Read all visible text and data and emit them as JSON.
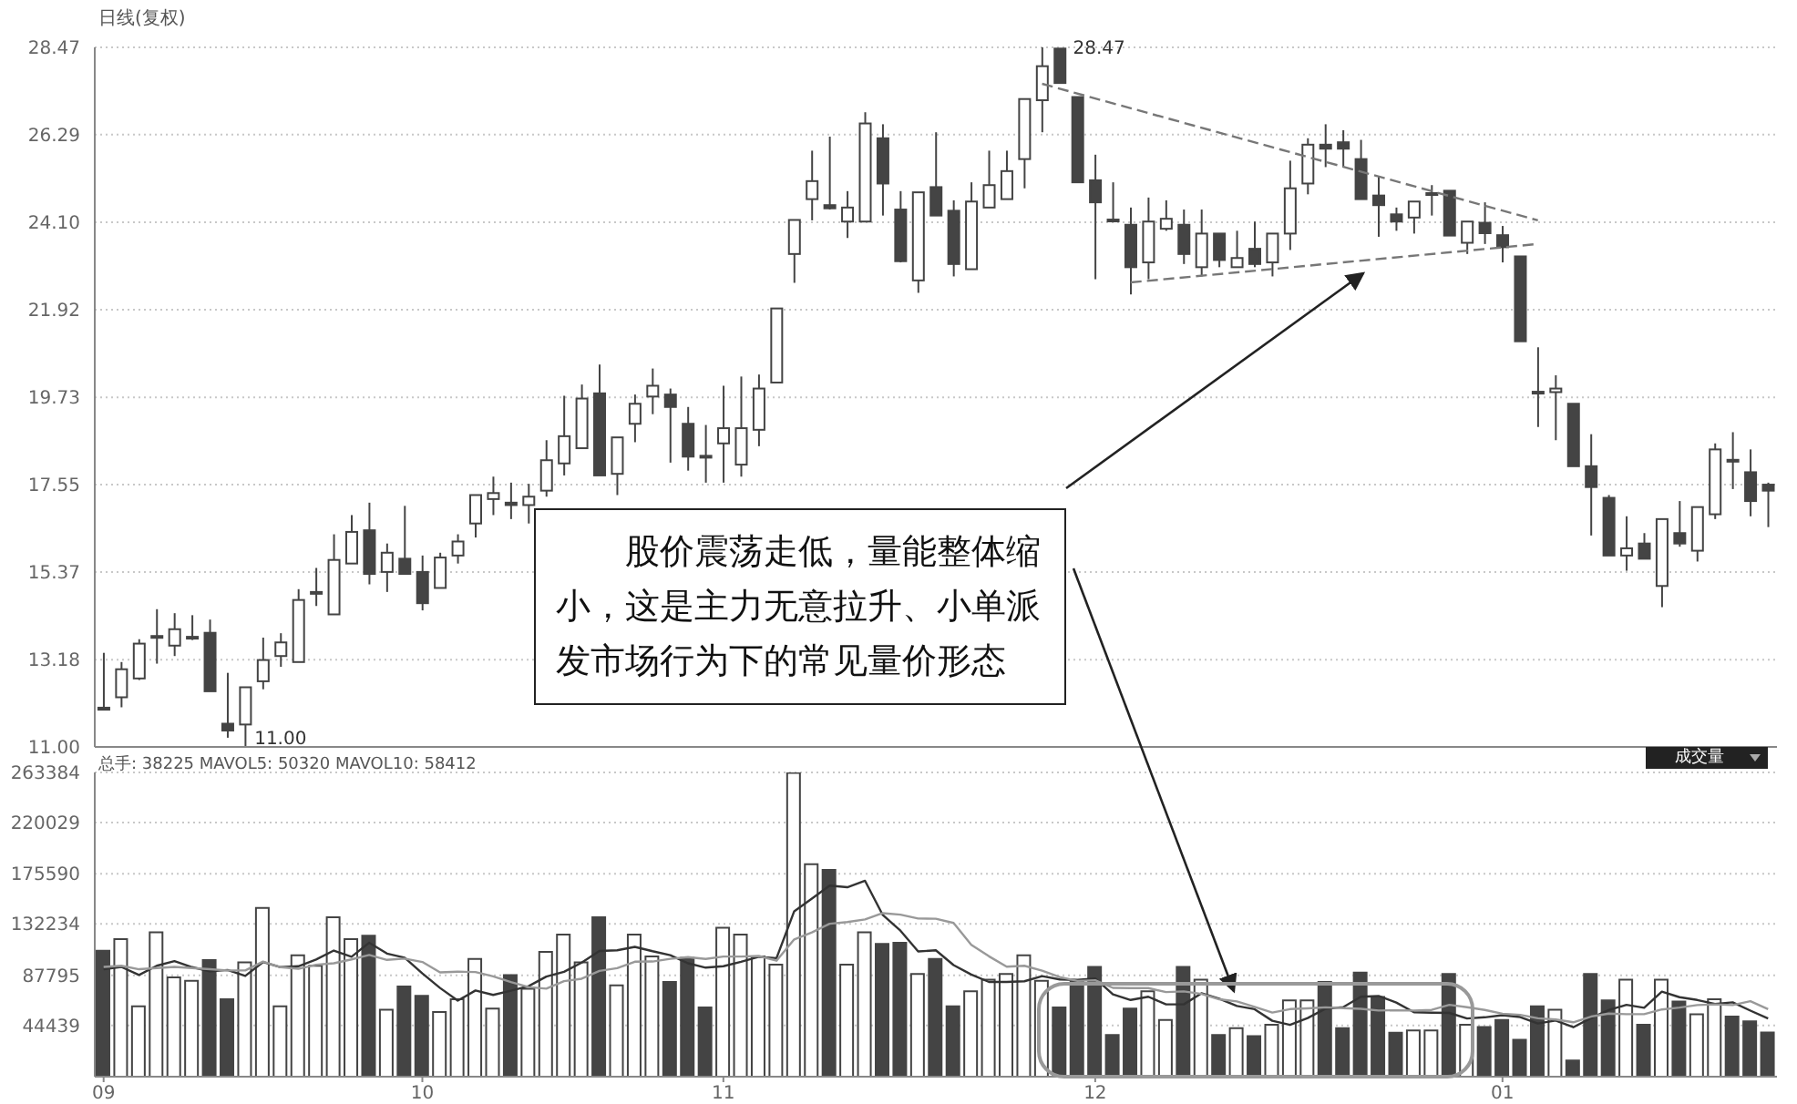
{
  "chart_data": [
    {
      "type": "candlestick",
      "annotations": [
        "日线(复权)",
        "11.00",
        "28.47",
        "股价震荡走低，量能整体缩小，这是主力无意拉升、小单派发市场行为下的常见量价形态"
      ],
      "categories": [
        "09",
        null,
        null,
        null,
        null,
        null,
        null,
        null,
        null,
        null,
        null,
        null,
        null,
        null,
        null,
        null,
        null,
        null,
        "10",
        null,
        null,
        null,
        null,
        null,
        null,
        null,
        null,
        null,
        null,
        null,
        null,
        null,
        null,
        null,
        null,
        "11",
        null,
        null,
        null,
        null,
        null,
        null,
        null,
        null,
        null,
        null,
        null,
        null,
        null,
        null,
        null,
        null,
        null,
        null,
        null,
        null,
        "12",
        null,
        null,
        null,
        null,
        null,
        null,
        null,
        null,
        null,
        null,
        null,
        null,
        null,
        null,
        null,
        null,
        null,
        null,
        null,
        null,
        null,
        null,
        "01",
        null,
        null,
        null,
        null,
        null,
        null,
        null,
        null,
        null,
        null,
        null,
        null,
        null,
        null,
        null
      ],
      "ohlc": [
        [
          11.98,
          13.35,
          11.93,
          11.93
        ],
        [
          12.24,
          13.12,
          11.99,
          12.94
        ],
        [
          12.71,
          13.69,
          12.67,
          13.58
        ],
        [
          13.74,
          14.44,
          13.08,
          13.77
        ],
        [
          13.53,
          14.34,
          13.27,
          13.94
        ],
        [
          13.71,
          14.29,
          13.67,
          13.75
        ],
        [
          13.85,
          14.18,
          12.39,
          12.39
        ],
        [
          11.58,
          12.85,
          11.23,
          11.41
        ],
        [
          11.56,
          12.49,
          11.0,
          12.49
        ],
        [
          12.64,
          13.73,
          12.44,
          13.17
        ],
        [
          13.27,
          13.84,
          13.0,
          13.61
        ],
        [
          13.12,
          14.94,
          13.12,
          14.67
        ],
        [
          14.83,
          15.47,
          14.52,
          14.87
        ],
        [
          14.31,
          16.31,
          14.31,
          15.67
        ],
        [
          15.58,
          16.79,
          15.58,
          16.37
        ],
        [
          16.41,
          17.1,
          15.06,
          15.32
        ],
        [
          15.37,
          16.08,
          14.87,
          15.85
        ],
        [
          15.7,
          17.02,
          15.3,
          15.32
        ],
        [
          15.37,
          15.78,
          14.41,
          14.59
        ],
        [
          14.97,
          15.85,
          14.97,
          15.73
        ],
        [
          15.78,
          16.31,
          15.58,
          16.13
        ],
        [
          16.58,
          17.29,
          16.23,
          17.29
        ],
        [
          17.19,
          17.75,
          16.79,
          17.34
        ],
        [
          17.1,
          17.6,
          16.69,
          17.04
        ],
        [
          17.04,
          17.57,
          16.58,
          17.25
        ],
        [
          17.4,
          18.66,
          17.25,
          18.16
        ],
        [
          18.08,
          19.77,
          17.78,
          18.76
        ],
        [
          18.46,
          20.05,
          18.46,
          19.7
        ],
        [
          19.83,
          20.55,
          17.78,
          17.78
        ],
        [
          17.82,
          18.73,
          17.29,
          18.73
        ],
        [
          19.07,
          19.8,
          18.61,
          19.57
        ],
        [
          19.75,
          20.45,
          19.31,
          20.02
        ],
        [
          19.8,
          19.95,
          18.1,
          19.49
        ],
        [
          19.07,
          19.49,
          17.9,
          18.25
        ],
        [
          18.27,
          19.04,
          17.6,
          18.23
        ],
        [
          18.58,
          20.02,
          17.6,
          18.96
        ],
        [
          18.05,
          20.25,
          17.75,
          18.96
        ],
        [
          18.92,
          20.3,
          18.51,
          19.95
        ],
        [
          20.1,
          21.95,
          20.1,
          21.95
        ],
        [
          23.31,
          24.16,
          22.59,
          24.16
        ],
        [
          24.68,
          25.89,
          24.15,
          25.13
        ],
        [
          24.53,
          26.24,
          24.42,
          24.45
        ],
        [
          24.12,
          24.88,
          23.71,
          24.47
        ],
        [
          24.12,
          26.85,
          24.12,
          26.57
        ],
        [
          26.2,
          26.55,
          24.27,
          25.07
        ],
        [
          24.42,
          24.88,
          23.1,
          23.13
        ],
        [
          22.65,
          24.85,
          22.34,
          24.85
        ],
        [
          24.98,
          26.35,
          24.27,
          24.27
        ],
        [
          24.39,
          24.65,
          22.75,
          23.06
        ],
        [
          22.93,
          25.1,
          22.93,
          24.62
        ],
        [
          24.47,
          25.89,
          24.47,
          25.03
        ],
        [
          24.68,
          25.89,
          24.68,
          25.38
        ],
        [
          25.68,
          27.18,
          24.95,
          27.18
        ],
        [
          27.15,
          28.47,
          26.35,
          28.0
        ],
        [
          28.44,
          28.44,
          27.58,
          27.58
        ],
        [
          27.23,
          27.23,
          25.1,
          25.1
        ],
        [
          25.15,
          25.79,
          22.68,
          24.6
        ],
        [
          24.17,
          25.1,
          24.1,
          24.13
        ],
        [
          24.04,
          24.47,
          22.3,
          22.98
        ],
        [
          23.1,
          24.72,
          22.68,
          24.12
        ],
        [
          23.94,
          24.65,
          23.89,
          24.19
        ],
        [
          24.04,
          24.42,
          23.06,
          23.31
        ],
        [
          22.98,
          24.42,
          22.75,
          23.82
        ],
        [
          23.82,
          23.82,
          22.98,
          23.16
        ],
        [
          22.98,
          23.89,
          22.98,
          23.21
        ],
        [
          23.44,
          24.12,
          22.98,
          23.06
        ],
        [
          23.1,
          23.82,
          22.75,
          23.82
        ],
        [
          23.82,
          25.64,
          23.41,
          24.95
        ],
        [
          25.07,
          26.2,
          24.8,
          26.04
        ],
        [
          26.04,
          26.55,
          25.48,
          25.94
        ],
        [
          26.1,
          26.4,
          25.48,
          25.94
        ],
        [
          25.68,
          26.16,
          24.68,
          24.68
        ],
        [
          24.77,
          25.26,
          23.74,
          24.53
        ],
        [
          24.3,
          24.47,
          23.89,
          24.12
        ],
        [
          24.22,
          24.62,
          23.82,
          24.62
        ],
        [
          24.81,
          25.03,
          24.27,
          24.83
        ],
        [
          24.89,
          24.89,
          23.77,
          23.77
        ],
        [
          23.59,
          24.12,
          23.31,
          24.12
        ],
        [
          24.09,
          24.6,
          23.56,
          23.83
        ],
        [
          23.78,
          24.01,
          23.1,
          23.48
        ],
        [
          23.25,
          23.25,
          21.13,
          21.13
        ],
        [
          19.87,
          20.98,
          18.99,
          19.84
        ],
        [
          19.86,
          20.28,
          18.66,
          19.95
        ],
        [
          19.57,
          19.57,
          18.01,
          18.01
        ],
        [
          18.01,
          18.81,
          16.28,
          17.49
        ],
        [
          17.22,
          17.29,
          15.78,
          15.78
        ],
        [
          15.78,
          16.76,
          15.4,
          15.96
        ],
        [
          16.08,
          16.34,
          15.7,
          15.7
        ],
        [
          15.02,
          16.69,
          14.49,
          16.69
        ],
        [
          16.34,
          17.14,
          16.0,
          16.08
        ],
        [
          15.9,
          16.99,
          15.63,
          16.99
        ],
        [
          16.81,
          18.58,
          16.69,
          18.43
        ],
        [
          18.17,
          18.86,
          17.44,
          18.14
        ],
        [
          17.86,
          18.43,
          16.76,
          17.14
        ],
        [
          17.55,
          17.6,
          16.49,
          17.4
        ]
      ],
      "colors": [
        "#444444",
        "#ffffff",
        "#ffffff",
        "#ffffff",
        "#ffffff",
        "#ffffff",
        "#444444",
        "#444444",
        "#ffffff",
        "#ffffff",
        "#ffffff",
        "#ffffff",
        "#ffffff",
        "#ffffff",
        "#ffffff",
        "#444444",
        "#ffffff",
        "#444444",
        "#444444",
        "#ffffff",
        "#ffffff",
        "#ffffff",
        "#ffffff",
        "#444444",
        "#ffffff",
        "#ffffff",
        "#ffffff",
        "#ffffff",
        "#444444",
        "#ffffff",
        "#ffffff",
        "#ffffff",
        "#444444",
        "#444444",
        "#444444",
        "#ffffff",
        "#ffffff",
        "#ffffff",
        "#ffffff",
        "#ffffff",
        "#ffffff",
        "#444444",
        "#ffffff",
        "#ffffff",
        "#444444",
        "#444444",
        "#ffffff",
        "#444444",
        "#444444",
        "#ffffff",
        "#ffffff",
        "#ffffff",
        "#ffffff",
        "#ffffff",
        "#444444",
        "#444444",
        "#444444",
        "#444444",
        "#444444",
        "#ffffff",
        "#ffffff",
        "#444444",
        "#ffffff",
        "#444444",
        "#ffffff",
        "#444444",
        "#ffffff",
        "#ffffff",
        "#ffffff",
        "#444444",
        "#444444",
        "#444444",
        "#444444",
        "#444444",
        "#ffffff",
        "#ffffff",
        "#444444",
        "#ffffff",
        "#444444",
        "#444444",
        "#444444",
        "#444444",
        "#ffffff",
        "#444444",
        "#444444",
        "#444444",
        "#ffffff",
        "#444444",
        "#ffffff",
        "#444444",
        "#ffffff",
        "#ffffff",
        "#444444",
        "#444444",
        "#444444"
      ],
      "series": [
        {
          "type": "line",
          "color": "#777777",
          "line_style": "dashed",
          "values": [
            null,
            null,
            null,
            null,
            null,
            null,
            null,
            null,
            null,
            null,
            null,
            null,
            null,
            null,
            null,
            null,
            null,
            null,
            null,
            null,
            null,
            null,
            null,
            null,
            null,
            null,
            null,
            null,
            null,
            null,
            null,
            null,
            null,
            null,
            null,
            null,
            null,
            null,
            null,
            null,
            null,
            null,
            null,
            null,
            null,
            null,
            null,
            null,
            null,
            null,
            null,
            null,
            null,
            27.56,
            null,
            null,
            null,
            null,
            null,
            null,
            null,
            null,
            null,
            null,
            null,
            null,
            null,
            null,
            null,
            null,
            null,
            null,
            null,
            null,
            null,
            null,
            null,
            null,
            null,
            null,
            null,
            24.15,
            null,
            null,
            null,
            null,
            null,
            null,
            null,
            null,
            null,
            null,
            null,
            null,
            null
          ]
        },
        {
          "type": "line",
          "color": "#777777",
          "line_style": "dashed",
          "values": [
            null,
            null,
            null,
            null,
            null,
            null,
            null,
            null,
            null,
            null,
            null,
            null,
            null,
            null,
            null,
            null,
            null,
            null,
            null,
            null,
            null,
            null,
            null,
            null,
            null,
            null,
            null,
            null,
            null,
            null,
            null,
            null,
            null,
            null,
            null,
            null,
            null,
            null,
            null,
            null,
            null,
            null,
            null,
            null,
            null,
            null,
            null,
            null,
            null,
            null,
            null,
            null,
            null,
            null,
            null,
            null,
            null,
            null,
            22.6,
            null,
            null,
            null,
            null,
            null,
            null,
            null,
            null,
            null,
            null,
            null,
            null,
            null,
            null,
            null,
            null,
            null,
            null,
            null,
            null,
            null,
            null,
            23.56,
            null,
            null,
            null,
            null,
            null,
            null,
            null,
            null,
            null,
            null,
            null,
            null,
            null
          ]
        }
      ],
      "ylim": [
        11.0,
        28.47
      ],
      "yticks": [
        {
          "value": 11.0,
          "label": "11.00"
        },
        13.18,
        15.37,
        17.55,
        19.73,
        21.92,
        {
          "value": 24.1,
          "label": "24.10"
        },
        26.29,
        28.47
      ],
      "grid": "y",
      "tick_labels": "y"
    },
    {
      "type": "bar",
      "annotations": [
        "总手: 38225 MAVOL5: 50320 MAVOL10: 58412",
        "成交量"
      ],
      "categories": [
        "09",
        null,
        null,
        null,
        null,
        null,
        null,
        null,
        null,
        null,
        null,
        null,
        null,
        null,
        null,
        null,
        null,
        null,
        "10",
        null,
        null,
        null,
        null,
        null,
        null,
        null,
        null,
        null,
        null,
        null,
        null,
        null,
        null,
        null,
        null,
        "11",
        null,
        null,
        null,
        null,
        null,
        null,
        null,
        null,
        null,
        null,
        null,
        null,
        null,
        null,
        null,
        null,
        null,
        null,
        null,
        null,
        "12",
        null,
        null,
        null,
        null,
        null,
        null,
        null,
        null,
        null,
        null,
        null,
        null,
        null,
        null,
        null,
        null,
        null,
        null,
        null,
        null,
        null,
        null,
        "01",
        null,
        null,
        null,
        null,
        null,
        null,
        null,
        null,
        null,
        null,
        null,
        null,
        null,
        null,
        null
      ],
      "values": [
        109000,
        119000,
        61000,
        125000,
        86000,
        83000,
        101000,
        67000,
        99000,
        146000,
        61000,
        105000,
        96000,
        138000,
        119000,
        122000,
        58000,
        78000,
        70000,
        56000,
        67000,
        102000,
        59000,
        88000,
        76000,
        108000,
        123000,
        99000,
        138000,
        79000,
        123000,
        104000,
        82000,
        103000,
        60000,
        129000,
        123000,
        104000,
        97000,
        263000,
        184000,
        179000,
        97000,
        125000,
        115000,
        116000,
        89000,
        102000,
        61000,
        74000,
        84000,
        89000,
        105000,
        83000,
        60000,
        82000,
        95000,
        36000,
        59000,
        74000,
        49000,
        95000,
        84000,
        36000,
        42000,
        35000,
        45000,
        66000,
        66000,
        82000,
        42000,
        90000,
        69000,
        38000,
        40000,
        40000,
        89000,
        45000,
        43000,
        49000,
        32000,
        61000,
        58000,
        14000,
        89000,
        66000,
        84000,
        45000,
        84000,
        65000,
        54000,
        67000,
        52000,
        48000,
        38225
      ],
      "colors": [
        "#444444",
        "#ffffff",
        "#ffffff",
        "#ffffff",
        "#ffffff",
        "#ffffff",
        "#444444",
        "#444444",
        "#ffffff",
        "#ffffff",
        "#ffffff",
        "#ffffff",
        "#ffffff",
        "#ffffff",
        "#ffffff",
        "#444444",
        "#ffffff",
        "#444444",
        "#444444",
        "#ffffff",
        "#ffffff",
        "#ffffff",
        "#ffffff",
        "#444444",
        "#ffffff",
        "#ffffff",
        "#ffffff",
        "#ffffff",
        "#444444",
        "#ffffff",
        "#ffffff",
        "#ffffff",
        "#444444",
        "#444444",
        "#444444",
        "#ffffff",
        "#ffffff",
        "#ffffff",
        "#ffffff",
        "#ffffff",
        "#ffffff",
        "#444444",
        "#ffffff",
        "#ffffff",
        "#444444",
        "#444444",
        "#ffffff",
        "#444444",
        "#444444",
        "#ffffff",
        "#ffffff",
        "#ffffff",
        "#ffffff",
        "#ffffff",
        "#444444",
        "#444444",
        "#444444",
        "#444444",
        "#444444",
        "#ffffff",
        "#ffffff",
        "#444444",
        "#ffffff",
        "#444444",
        "#ffffff",
        "#444444",
        "#ffffff",
        "#ffffff",
        "#ffffff",
        "#444444",
        "#444444",
        "#444444",
        "#444444",
        "#444444",
        "#ffffff",
        "#ffffff",
        "#444444",
        "#ffffff",
        "#444444",
        "#444444",
        "#444444",
        "#444444",
        "#ffffff",
        "#444444",
        "#444444",
        "#444444",
        "#ffffff",
        "#444444",
        "#ffffff",
        "#444444",
        "#ffffff",
        "#ffffff",
        "#444444",
        "#444444",
        "#444444"
      ],
      "series": [
        {
          "type": "line",
          "color": "#333333",
          "values": [
            93000,
            95000,
            88000,
            96000,
            100000,
            94800,
            91200,
            92400,
            87200,
            99200,
            94800,
            95600,
            101400,
            109200,
            103800,
            116000,
            106600,
            103000,
            89400,
            76800,
            65800,
            74600,
            70800,
            74400,
            78400,
            86600,
            90800,
            98800,
            108800,
            109400,
            112400,
            108600,
            105200,
            98200,
            94400,
            95600,
            99400,
            103800,
            102600,
            143200,
            154200,
            165400,
            164000,
            169600,
            140000,
            126400,
            108400,
            109400,
            96600,
            88400,
            82000,
            82000,
            82600,
            87000,
            84200,
            83800,
            85000,
            71200,
            66400,
            69200,
            62600,
            62600,
            72200,
            67600,
            61200,
            58400,
            48400,
            44800,
            50800,
            58800,
            60200,
            69200,
            69800,
            64200,
            55800,
            55400,
            55200,
            50400,
            51400,
            53200,
            51600,
            46000,
            48600,
            42800,
            50800,
            57600,
            62200,
            59600,
            73600,
            68800,
            66400,
            63000,
            64400,
            57200,
            50320
          ]
        },
        {
          "type": "line",
          "color": "#999999",
          "values": [
            95000,
            96000,
            93000,
            94000,
            95000,
            94000,
            93000,
            92000,
            92000,
            99600,
            94800,
            93400,
            96900,
            98200,
            101500,
            105400,
            101100,
            102200,
            99300,
            90300,
            90900,
            90600,
            86900,
            81900,
            77600,
            76200,
            82700,
            84800,
            91600,
            93900,
            99500,
            99700,
            102000,
            103500,
            101900,
            104000,
            104000,
            104500,
            100400,
            118800,
            124900,
            132400,
            133900,
            136100,
            141600,
            140300,
            136900,
            136700,
            133100,
            114200,
            104200,
            95200,
            96000,
            91800,
            86300,
            82900,
            83500,
            76900,
            76700,
            76700,
            73200,
            73800,
            71700,
            67000,
            65200,
            60500,
            55500,
            58500,
            59200,
            60000,
            59300,
            58800,
            57300,
            57500,
            57300,
            57800,
            62200,
            60100,
            57800,
            54500,
            53500,
            50600,
            49500,
            47100,
            52000,
            54600,
            54100,
            54100,
            58200,
            59800,
            62000,
            62600,
            62000,
            65400,
            58412
          ]
        }
      ],
      "ylim": [
        0,
        263384
      ],
      "yticks": [
        44439,
        87795,
        132234,
        175590,
        220029,
        263384
      ],
      "grid": "y"
    }
  ]
}
